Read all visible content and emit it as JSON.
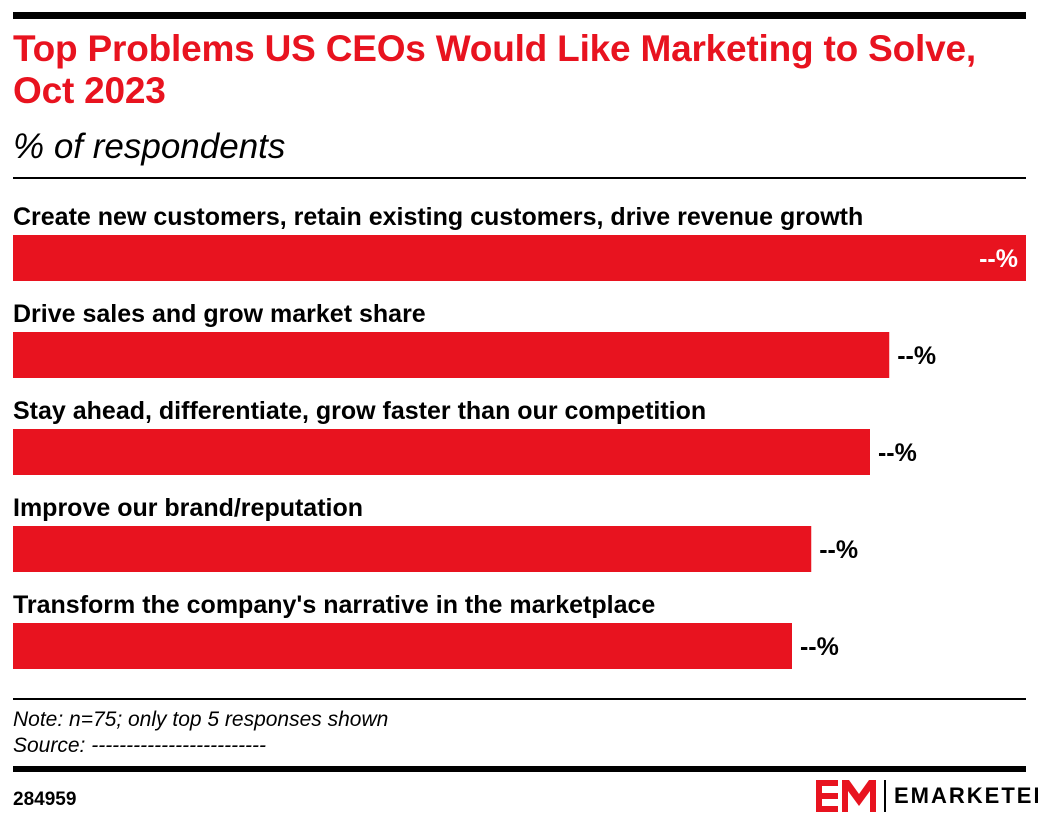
{
  "header": {
    "title": "Top Problems US CEOs Would Like Marketing to Solve, Oct 2023",
    "subtitle": "% of respondents"
  },
  "chart_data": {
    "type": "bar",
    "orientation": "horizontal",
    "categories": [
      "Create new customers, retain existing customers, drive revenue growth",
      "Drive sales and grow market share",
      "Stay ahead, differentiate, grow faster than our competition",
      "Improve our brand/reputation",
      "Transform the company's narrative in the marketplace"
    ],
    "values": [
      100,
      86.5,
      84.6,
      78.8,
      76.9
    ],
    "value_labels": [
      "--%",
      "--%",
      "--%",
      "--%",
      "--%"
    ],
    "bar_color": "#e8131f",
    "grid": false
  },
  "footer": {
    "note": "Note: n=75; only top 5 responses shown",
    "source": "Source: -------------------------",
    "chart_id": "284959",
    "brand": "EMARKETER"
  },
  "colors": {
    "accent": "#e8131f",
    "text": "#000000"
  }
}
